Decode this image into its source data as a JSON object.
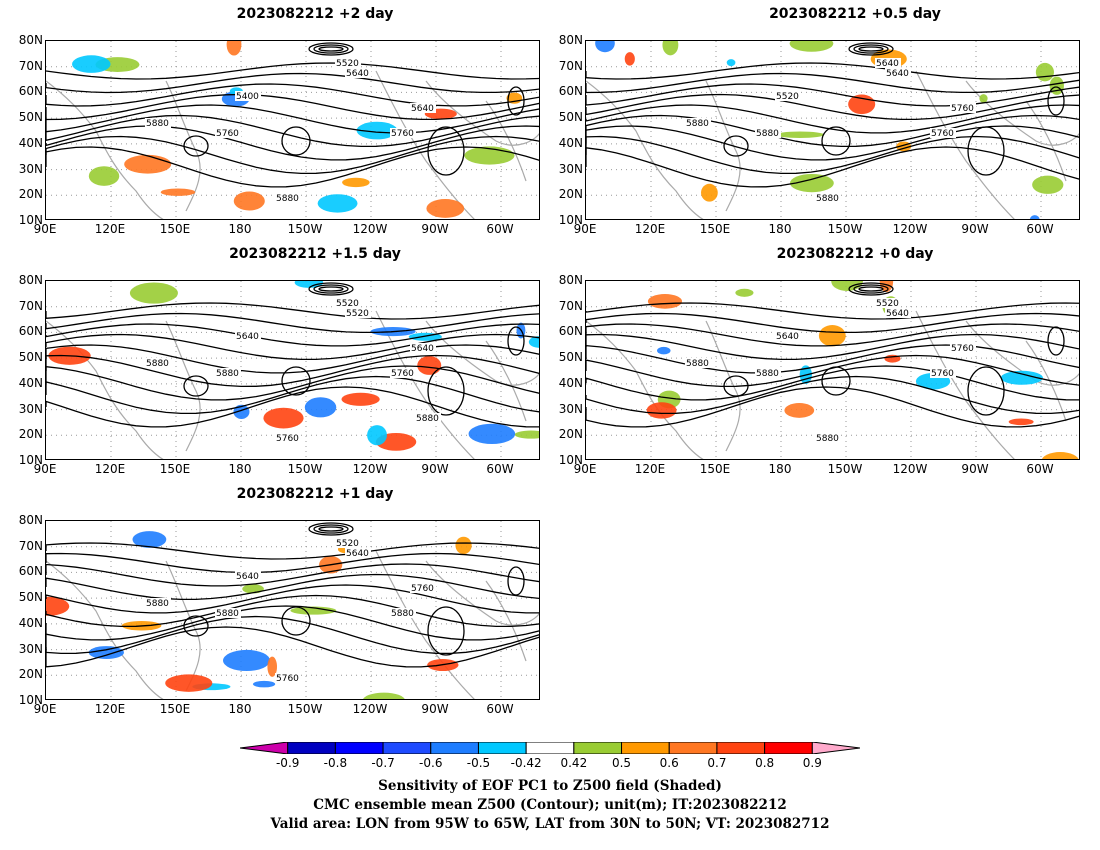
{
  "panels": [
    {
      "title": "2023082212 +2 day"
    },
    {
      "title": "2023082212 +0.5 day"
    },
    {
      "title": "2023082212 +1.5 day"
    },
    {
      "title": "2023082212 +0 day"
    },
    {
      "title": "2023082212 +1 day"
    }
  ],
  "axes": {
    "lat_labels": [
      "80N",
      "70N",
      "60N",
      "50N",
      "40N",
      "30N",
      "20N",
      "10N"
    ],
    "lon_labels": [
      "90E",
      "120E",
      "150E",
      "180",
      "150W",
      "120W",
      "90W",
      "60W"
    ]
  },
  "contour_labels": {
    "p2": [
      "5520",
      "5640",
      "5400",
      "5640",
      "5760",
      "5880",
      "5880",
      "5760"
    ],
    "p05": [
      "5640",
      "5640",
      "5520",
      "5760",
      "5760",
      "5880",
      "5880",
      "5880"
    ],
    "p15": [
      "5520",
      "5520",
      "5640",
      "5640",
      "5760",
      "5760",
      "5880",
      "5880",
      "5880"
    ],
    "p0": [
      "5520",
      "5640",
      "5640",
      "5760",
      "5760",
      "5880",
      "5880",
      "5880"
    ],
    "p1": [
      "5520",
      "5640",
      "5640",
      "5760",
      "5880",
      "5760",
      "5880",
      "5880"
    ]
  },
  "colorbar": {
    "labels": [
      "-0.9",
      "-0.8",
      "-0.7",
      "-0.6",
      "-0.5",
      "-0.42",
      "0.42",
      "0.5",
      "0.6",
      "0.7",
      "0.8",
      "0.9"
    ],
    "colors": [
      "#0000c0",
      "#0000ff",
      "#1e4bff",
      "#1e7dff",
      "#00c8ff",
      "#ffffff",
      "#99cc33",
      "#ff9900",
      "#ff7722",
      "#ff4411",
      "#ff0000"
    ],
    "low_color": "#cc00aa",
    "high_color": "#ffaacc"
  },
  "caption": {
    "line1": "Sensitivity of EOF PC1 to Z500 field (Shaded)",
    "line2": "CMC ensemble mean Z500 (Contour); unit(m); IT:2023082212",
    "line3": "Valid area: LON from 95W to 65W, LAT from 30N to 50N; VT: 2023082712"
  }
}
